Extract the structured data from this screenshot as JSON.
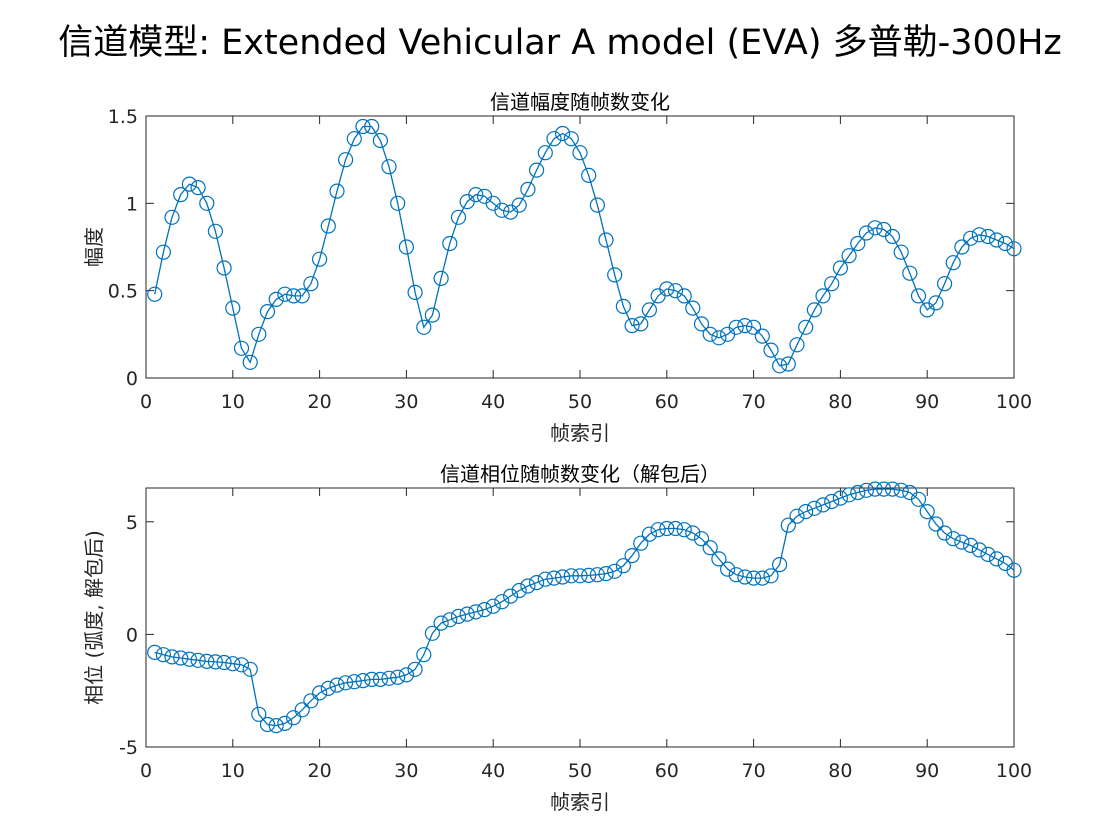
{
  "figure_title": "信道模型: Extended Vehicular A model (EVA) 多普勒-300Hz",
  "colors": {
    "series": "#0072BD",
    "axis": "#262626"
  },
  "chart_data": [
    {
      "type": "line",
      "title": "信道幅度随帧数变化",
      "xlabel": "帧索引",
      "ylabel": "幅度",
      "xlim": [
        0,
        100
      ],
      "ylim": [
        0,
        1.5
      ],
      "xticks": [
        0,
        10,
        20,
        30,
        40,
        50,
        60,
        70,
        80,
        90,
        100
      ],
      "yticks": [
        0,
        0.5,
        1,
        1.5
      ],
      "ytick_labels": [
        "0",
        "0.5",
        "1",
        "1.5"
      ],
      "marker": "circle",
      "x": [
        1,
        2,
        3,
        4,
        5,
        6,
        7,
        8,
        9,
        10,
        11,
        12,
        13,
        14,
        15,
        16,
        17,
        18,
        19,
        20,
        21,
        22,
        23,
        24,
        25,
        26,
        27,
        28,
        29,
        30,
        31,
        32,
        33,
        34,
        35,
        36,
        37,
        38,
        39,
        40,
        41,
        42,
        43,
        44,
        45,
        46,
        47,
        48,
        49,
        50,
        51,
        52,
        53,
        54,
        55,
        56,
        57,
        58,
        59,
        60,
        61,
        62,
        63,
        64,
        65,
        66,
        67,
        68,
        69,
        70,
        71,
        72,
        73,
        74,
        75,
        76,
        77,
        78,
        79,
        80,
        81,
        82,
        83,
        84,
        85,
        86,
        87,
        88,
        89,
        90,
        91,
        92,
        93,
        94,
        95,
        96,
        97,
        98,
        99,
        100
      ],
      "values": [
        0.48,
        0.72,
        0.92,
        1.05,
        1.11,
        1.09,
        1.0,
        0.84,
        0.63,
        0.4,
        0.17,
        0.09,
        0.25,
        0.38,
        0.45,
        0.48,
        0.47,
        0.47,
        0.54,
        0.68,
        0.87,
        1.07,
        1.25,
        1.37,
        1.44,
        1.44,
        1.36,
        1.21,
        1.0,
        0.75,
        0.49,
        0.29,
        0.36,
        0.57,
        0.77,
        0.92,
        1.01,
        1.05,
        1.04,
        1.0,
        0.96,
        0.95,
        0.99,
        1.08,
        1.19,
        1.29,
        1.37,
        1.4,
        1.37,
        1.29,
        1.16,
        0.99,
        0.79,
        0.59,
        0.41,
        0.3,
        0.31,
        0.39,
        0.47,
        0.51,
        0.5,
        0.47,
        0.4,
        0.31,
        0.25,
        0.23,
        0.25,
        0.29,
        0.3,
        0.29,
        0.24,
        0.16,
        0.07,
        0.08,
        0.19,
        0.29,
        0.39,
        0.47,
        0.54,
        0.63,
        0.7,
        0.77,
        0.83,
        0.86,
        0.85,
        0.81,
        0.72,
        0.6,
        0.47,
        0.39,
        0.43,
        0.54,
        0.66,
        0.75,
        0.8,
        0.82,
        0.81,
        0.79,
        0.77,
        0.74
      ]
    },
    {
      "type": "line",
      "title": "信道相位随帧数变化（解包后）",
      "xlabel": "帧索引",
      "ylabel": "相位 (弧度, 解包后)",
      "xlim": [
        0,
        100
      ],
      "ylim": [
        -5,
        6.5
      ],
      "xticks": [
        0,
        10,
        20,
        30,
        40,
        50,
        60,
        70,
        80,
        90,
        100
      ],
      "yticks": [
        -5,
        0,
        5
      ],
      "ytick_labels": [
        "-5",
        "0",
        "5"
      ],
      "marker": "circle",
      "x": [
        1,
        2,
        3,
        4,
        5,
        6,
        7,
        8,
        9,
        10,
        11,
        12,
        13,
        14,
        15,
        16,
        17,
        18,
        19,
        20,
        21,
        22,
        23,
        24,
        25,
        26,
        27,
        28,
        29,
        30,
        31,
        32,
        33,
        34,
        35,
        36,
        37,
        38,
        39,
        40,
        41,
        42,
        43,
        44,
        45,
        46,
        47,
        48,
        49,
        50,
        51,
        52,
        53,
        54,
        55,
        56,
        57,
        58,
        59,
        60,
        61,
        62,
        63,
        64,
        65,
        66,
        67,
        68,
        69,
        70,
        71,
        72,
        73,
        74,
        75,
        76,
        77,
        78,
        79,
        80,
        81,
        82,
        83,
        84,
        85,
        86,
        87,
        88,
        89,
        90,
        91,
        92,
        93,
        94,
        95,
        96,
        97,
        98,
        99,
        100
      ],
      "values": [
        -0.8,
        -0.9,
        -1.0,
        -1.05,
        -1.1,
        -1.15,
        -1.2,
        -1.22,
        -1.25,
        -1.3,
        -1.35,
        -1.55,
        -3.55,
        -4.0,
        -4.05,
        -3.95,
        -3.7,
        -3.35,
        -2.95,
        -2.6,
        -2.4,
        -2.25,
        -2.15,
        -2.1,
        -2.05,
        -2.0,
        -2.0,
        -1.95,
        -1.9,
        -1.8,
        -1.55,
        -0.9,
        0.05,
        0.5,
        0.65,
        0.8,
        0.9,
        1.0,
        1.1,
        1.25,
        1.45,
        1.7,
        1.95,
        2.15,
        2.3,
        2.45,
        2.5,
        2.55,
        2.6,
        2.6,
        2.62,
        2.65,
        2.7,
        2.8,
        3.05,
        3.5,
        4.05,
        4.45,
        4.65,
        4.7,
        4.7,
        4.65,
        4.5,
        4.25,
        3.85,
        3.35,
        2.9,
        2.65,
        2.55,
        2.5,
        2.5,
        2.6,
        3.1,
        4.85,
        5.25,
        5.45,
        5.6,
        5.75,
        5.9,
        6.05,
        6.2,
        6.3,
        6.4,
        6.45,
        6.45,
        6.45,
        6.4,
        6.3,
        6.0,
        5.45,
        4.9,
        4.5,
        4.25,
        4.1,
        3.95,
        3.75,
        3.55,
        3.35,
        3.15,
        2.85
      ]
    }
  ]
}
